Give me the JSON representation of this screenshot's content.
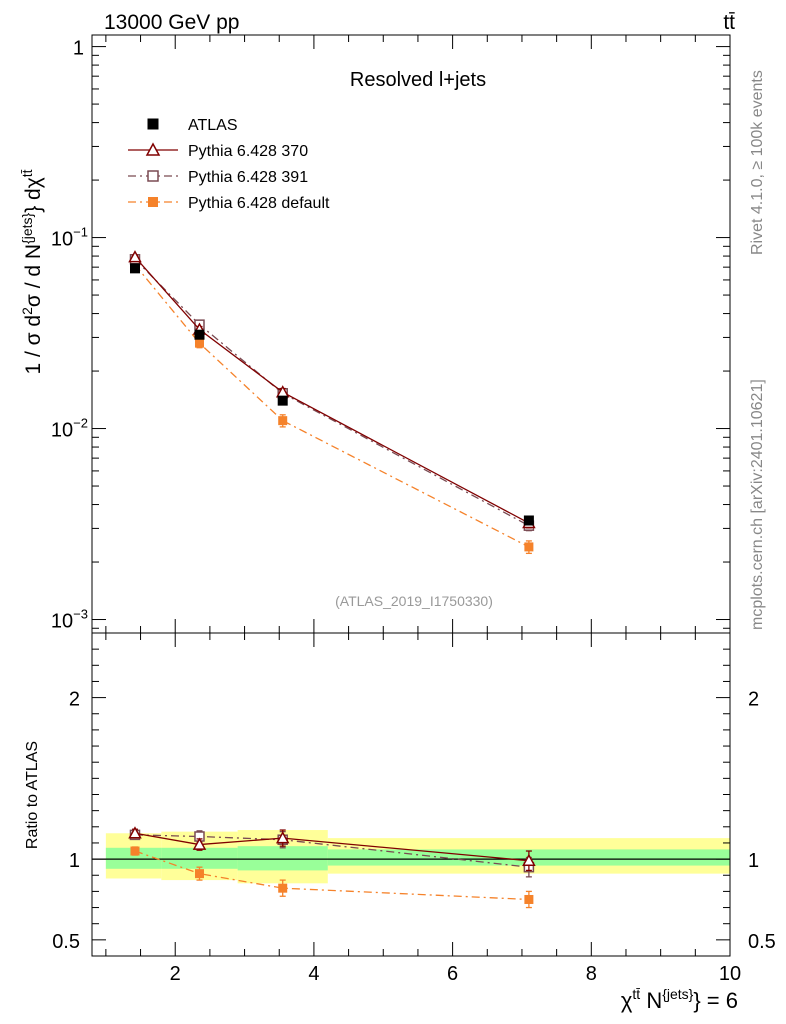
{
  "header": {
    "energy_label": "13000 GeV pp",
    "process_label": "tt̄"
  },
  "side_text": {
    "rivet": "Rivet 4.1.0, ≥ 100k events",
    "mcplots": "mcplots.cern.ch [arXiv:2401.10621]"
  },
  "chart_data": [
    {
      "type": "line",
      "panel": "main",
      "title": "Resolved l+jets",
      "watermark": "(ATLAS_2019_I1750330)",
      "ylabel": "1 / σ d²σ / d N^{jets} dχ^{tt̄}",
      "yscale": "log",
      "ylim": [
        0.00085,
        1.15
      ],
      "xlim": [
        0.8,
        10.0
      ],
      "ytick_labels": [
        {
          "value": 1,
          "mantissa": "1",
          "exponent": ""
        },
        {
          "value": 0.1,
          "mantissa": "10",
          "exponent": "−1"
        },
        {
          "value": 0.01,
          "mantissa": "10",
          "exponent": "−2"
        },
        {
          "value": 0.001,
          "mantissa": "10",
          "exponent": "−3"
        }
      ],
      "legend_position": "top-left",
      "series": [
        {
          "name": "ATLAS",
          "color": "#000000",
          "marker": "filled-square",
          "line": "none",
          "x": [
            1.42,
            2.35,
            3.55,
            7.1
          ],
          "x_bins": [
            [
              1.0,
              1.8
            ],
            [
              1.8,
              2.9
            ],
            [
              2.9,
              4.2
            ],
            [
              4.2,
              10.0
            ]
          ],
          "y": [
            0.069,
            0.031,
            0.014,
            0.0033
          ],
          "yerr": [
            0.002,
            0.001,
            0.0005,
            0.00012
          ]
        },
        {
          "name": "Pythia 6.428 370",
          "color": "#800000",
          "marker": "open-triangle",
          "line": "solid",
          "x": [
            1.42,
            2.35,
            3.55,
            7.1
          ],
          "y": [
            0.079,
            0.033,
            0.0155,
            0.0032
          ],
          "yerr": [
            0.0015,
            0.0012,
            0.0007,
            0.00018
          ]
        },
        {
          "name": "Pythia 6.428 391",
          "color": "#7a4a52",
          "marker": "open-square",
          "line": "dashdot",
          "x": [
            1.42,
            2.35,
            3.55,
            7.1
          ],
          "y": [
            0.077,
            0.035,
            0.0153,
            0.0031
          ],
          "yerr": [
            0.0015,
            0.0012,
            0.0007,
            0.00018
          ]
        },
        {
          "name": "Pythia 6.428 default",
          "color": "#f5822a",
          "marker": "filled-square",
          "line": "dashdot",
          "x": [
            1.42,
            2.35,
            3.55,
            7.1
          ],
          "y": [
            0.072,
            0.028,
            0.011,
            0.0024
          ],
          "yerr": [
            0.002,
            0.0015,
            0.0008,
            0.00018
          ]
        }
      ]
    },
    {
      "type": "line",
      "panel": "ratio",
      "ylabel": "Ratio to ATLAS",
      "xlabel": "χ^{tt̄} N^{jets} = 6",
      "ylim": [
        0.4,
        2.4
      ],
      "xlim": [
        0.8,
        10.0
      ],
      "xticks": [
        2,
        4,
        6,
        8,
        10
      ],
      "yticks": [
        0.5,
        1,
        2
      ],
      "reference_line": 1,
      "uncertainty_bands": [
        {
          "x": [
            1.0,
            1.8
          ],
          "stat": [
            0.94,
            1.07
          ],
          "total": [
            0.88,
            1.16
          ]
        },
        {
          "x": [
            1.8,
            2.9
          ],
          "stat": [
            0.94,
            1.07
          ],
          "total": [
            0.87,
            1.17
          ]
        },
        {
          "x": [
            2.9,
            4.2
          ],
          "stat": [
            0.93,
            1.08
          ],
          "total": [
            0.85,
            1.18
          ]
        },
        {
          "x": [
            4.2,
            10.0
          ],
          "stat": [
            0.96,
            1.06
          ],
          "total": [
            0.91,
            1.13
          ]
        }
      ],
      "series": [
        {
          "name": "Pythia 6.428 370",
          "color": "#800000",
          "marker": "open-triangle",
          "line": "solid",
          "x": [
            1.42,
            2.35,
            3.55,
            7.1
          ],
          "y": [
            1.16,
            1.09,
            1.13,
            0.99
          ],
          "yerr": [
            0.025,
            0.035,
            0.05,
            0.06
          ]
        },
        {
          "name": "Pythia 6.428 391",
          "color": "#7a4a52",
          "marker": "open-square",
          "line": "dashdot",
          "x": [
            1.42,
            2.35,
            3.55,
            7.1
          ],
          "y": [
            1.15,
            1.14,
            1.12,
            0.95
          ],
          "yerr": [
            0.025,
            0.035,
            0.05,
            0.06
          ]
        },
        {
          "name": "Pythia 6.428 default",
          "color": "#f5822a",
          "marker": "filled-square",
          "line": "dashdot",
          "x": [
            1.42,
            2.35,
            3.55,
            7.1
          ],
          "y": [
            1.05,
            0.91,
            0.82,
            0.75
          ],
          "yerr": [
            0.025,
            0.04,
            0.05,
            0.05
          ]
        }
      ]
    }
  ]
}
